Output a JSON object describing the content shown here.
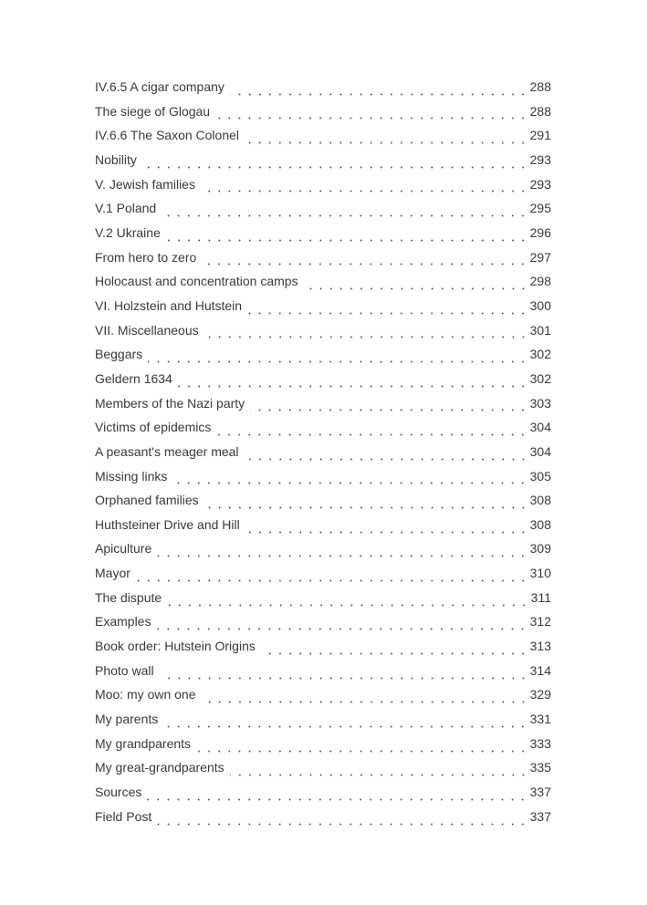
{
  "toc": [
    {
      "title": "IV.6.5 A cigar company",
      "page": "288"
    },
    {
      "title": "The siege of Glogau",
      "page": "288"
    },
    {
      "title": "IV.6.6 The Saxon Colonel",
      "page": "291"
    },
    {
      "title": "Nobility",
      "page": "293"
    },
    {
      "title": "V. Jewish families",
      "page": "293"
    },
    {
      "title": "V.1 Poland",
      "page": "295"
    },
    {
      "title": "V.2 Ukraine",
      "page": "296"
    },
    {
      "title": "From hero to zero",
      "page": "297"
    },
    {
      "title": "Holocaust and concentration camps",
      "page": "298"
    },
    {
      "title": "VI. Holzstein and Hutstein",
      "page": "300"
    },
    {
      "title": "VII. Miscellaneous",
      "page": "301"
    },
    {
      "title": "Beggars",
      "page": "302"
    },
    {
      "title": "Geldern 1634",
      "page": "302"
    },
    {
      "title": "Members of the Nazi party",
      "page": "303"
    },
    {
      "title": "Victims of epidemics",
      "page": "304"
    },
    {
      "title": "A peasant's meager meal",
      "page": "304"
    },
    {
      "title": "Missing links",
      "page": "305"
    },
    {
      "title": "Orphaned families",
      "page": "308"
    },
    {
      "title": "Huthsteiner Drive and Hill",
      "page": "308"
    },
    {
      "title": "Apiculture",
      "page": "309"
    },
    {
      "title": "Mayor",
      "page": "310"
    },
    {
      "title": "The dispute",
      "page": "311"
    },
    {
      "title": "Examples",
      "page": "312"
    },
    {
      "title": "Book order: Hutstein Origins",
      "page": "313"
    },
    {
      "title": "Photo wall",
      "page": "314"
    },
    {
      "title": "Moo: my own one",
      "page": "329"
    },
    {
      "title": "My parents",
      "page": "331"
    },
    {
      "title": "My grandparents",
      "page": "333"
    },
    {
      "title": "My great-grandparents",
      "page": "335"
    },
    {
      "title": "Sources",
      "page": "337"
    },
    {
      "title": "Field Post",
      "page": "337"
    }
  ]
}
